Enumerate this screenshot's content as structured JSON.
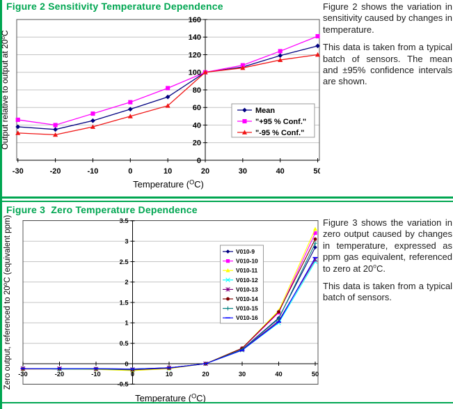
{
  "page": {
    "accent_green": "#00a651",
    "background": "#ffffff"
  },
  "figure2": {
    "title": "Figure 2 Sensitivity Temperature Dependence",
    "paragraphs": [
      [
        {
          "t": "Figure 2 shows the variation in sensitivity caused by changes in temperature."
        }
      ],
      [
        {
          "t": "This data is taken from a typical batch of sensors. The mean and ±95% confidence intervals are shown."
        }
      ]
    ]
  },
  "figure3": {
    "title": "Figure 3  Zero Temperature Dependence",
    "paragraphs": [
      [
        {
          "t": "Figure 3 shows the variation in zero output caused by changes in temperature, expressed as ppm gas equivalent, referenced to zero at 20"
        },
        {
          "t": "o",
          "sup": true
        },
        {
          "t": "C."
        }
      ],
      [
        {
          "t": "This data is taken from a typical batch of sensors."
        }
      ]
    ]
  },
  "chart_data": [
    {
      "id": "sensitivity-chart",
      "type": "line",
      "title": "Figure 2 Sensitivity Temperature Dependence",
      "x": [
        -30,
        -20,
        -10,
        0,
        10,
        20,
        30,
        40,
        50
      ],
      "xticks": [
        -30,
        -20,
        -10,
        0,
        10,
        20,
        30,
        40,
        50
      ],
      "yticks": [
        0,
        20,
        40,
        60,
        80,
        100,
        120,
        140,
        160
      ],
      "ylim": [
        0,
        160
      ],
      "xlim": [
        -30,
        50
      ],
      "grid": true,
      "value_axis_cross_x": 20,
      "legend_position": "inside right",
      "xlabel": {
        "pre": "Temperature (",
        "sup": "O",
        "post": "C)"
      },
      "ylabel": {
        "pre": "Output relative to output at 20",
        "sup": "o",
        "post": "C"
      },
      "series": [
        {
          "name": "Mean",
          "color": "#000080",
          "marker": "diamond",
          "values": [
            38,
            35,
            45,
            58,
            72,
            100,
            106,
            119,
            130
          ]
        },
        {
          "name": "\"+95 % Conf.\"",
          "color": "#ff00ff",
          "marker": "square",
          "values": [
            46,
            40,
            53,
            66,
            82,
            100,
            108,
            124,
            141
          ]
        },
        {
          "name": "\"-95 % Conf.\"",
          "color": "#f01515",
          "marker": "triangle",
          "values": [
            31,
            29,
            38,
            50,
            62,
            100,
            105,
            114,
            120
          ]
        }
      ]
    },
    {
      "id": "zero-chart",
      "type": "line",
      "title": "Figure 3  Zero Temperature Dependence",
      "x": [
        -30,
        -20,
        -10,
        0,
        10,
        20,
        30,
        40,
        50
      ],
      "xticks": [
        -30,
        -20,
        -10,
        0,
        10,
        20,
        30,
        40,
        50
      ],
      "yticks": [
        -0.5,
        0,
        0.5,
        1,
        1.5,
        2,
        2.5,
        3,
        3.5
      ],
      "ylim": [
        -0.5,
        3.5
      ],
      "xlim": [
        -30,
        50
      ],
      "grid": true,
      "value_axis_cross_x": 0,
      "legend_position": "inside middle",
      "xlabel": {
        "pre": "Temperature (",
        "sup": "O",
        "post": "C)"
      },
      "ylabel": {
        "pre": "Zero output, referenced to 20",
        "sup": "o",
        "post": "C (equivalent ppm)"
      },
      "series": [
        {
          "name": "V010-9",
          "color": "#000080",
          "marker": "diamond",
          "values": [
            -0.12,
            -0.13,
            -0.12,
            -0.13,
            -0.1,
            0,
            0.35,
            1.12,
            2.85
          ]
        },
        {
          "name": "V010-10",
          "color": "#ff00ff",
          "marker": "square",
          "values": [
            -0.12,
            -0.12,
            -0.13,
            -0.15,
            -0.1,
            0,
            0.37,
            1.25,
            3.2
          ]
        },
        {
          "name": "V010-11",
          "color": "#ffff00",
          "marker": "triangle",
          "values": [
            -0.13,
            -0.13,
            -0.14,
            -0.17,
            -0.12,
            0,
            0.38,
            1.3,
            3.3
          ]
        },
        {
          "name": "V010-12",
          "color": "#00ffff",
          "marker": "x",
          "values": [
            -0.12,
            -0.13,
            -0.13,
            -0.15,
            -0.11,
            0,
            0.33,
            1.0,
            2.5
          ]
        },
        {
          "name": "V010-13",
          "color": "#800080",
          "marker": "asterisk",
          "values": [
            -0.12,
            -0.12,
            -0.13,
            -0.14,
            -0.1,
            0,
            0.34,
            1.05,
            2.55
          ]
        },
        {
          "name": "V010-14",
          "color": "#800000",
          "marker": "circle",
          "values": [
            -0.13,
            -0.13,
            -0.13,
            -0.15,
            -0.11,
            0,
            0.38,
            1.27,
            3.05
          ]
        },
        {
          "name": "V010-15",
          "color": "#008080",
          "marker": "plus",
          "values": [
            -0.12,
            -0.13,
            -0.13,
            -0.14,
            -0.1,
            0,
            0.35,
            1.1,
            2.95
          ]
        },
        {
          "name": "V010-16",
          "color": "#0000ff",
          "marker": "dash",
          "values": [
            -0.12,
            -0.12,
            -0.12,
            -0.13,
            -0.1,
            0,
            0.33,
            1.02,
            2.6
          ]
        }
      ]
    }
  ]
}
